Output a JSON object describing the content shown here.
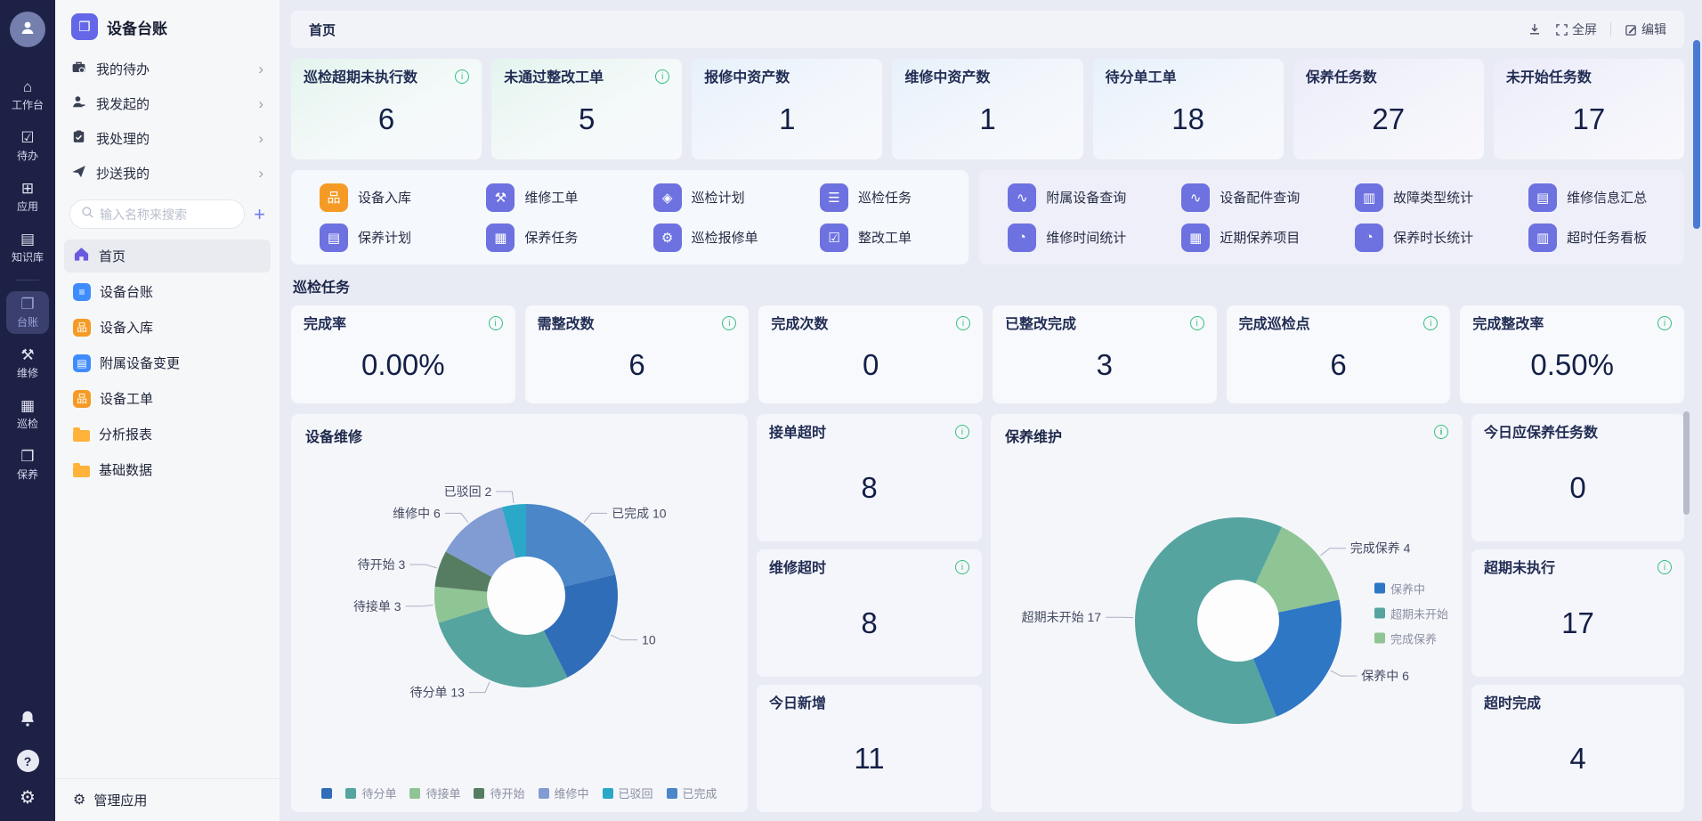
{
  "app_title": "设备台账",
  "app_icon_glyph": "❒",
  "colors": {
    "accent_purple": "#6d72e0",
    "accent_orange": "#f59b25",
    "accent_blue": "#3f8cff",
    "info_green": "#35c07e",
    "rail_bg": "#1d2145",
    "scrollbar_blue": "#4a7bd4"
  },
  "rail": {
    "selected": "台账",
    "items": [
      {
        "label": "工作台",
        "glyph": "⌂"
      },
      {
        "label": "待办",
        "glyph": "☑"
      },
      {
        "label": "应用",
        "glyph": "⊞"
      },
      {
        "label": "知识库",
        "glyph": "▤"
      },
      {
        "label": "台账",
        "glyph": "❐"
      },
      {
        "label": "维修",
        "glyph": "⚒"
      },
      {
        "label": "巡检",
        "glyph": "▦"
      },
      {
        "label": "保养",
        "glyph": "❒"
      }
    ]
  },
  "sidebar": {
    "groups": [
      {
        "label": "我的待办"
      },
      {
        "label": "我发起的"
      },
      {
        "label": "我处理的"
      },
      {
        "label": "抄送我的"
      }
    ],
    "search_placeholder": "输入名称来搜索",
    "menu": [
      {
        "label": "首页",
        "selected": true
      },
      {
        "label": "设备台账",
        "glyph": "≡",
        "color": "#3f8cff"
      },
      {
        "label": "设备入库",
        "glyph": "品",
        "color": "#f59b25"
      },
      {
        "label": "附属设备变更",
        "glyph": "▤",
        "color": "#3f8cff"
      },
      {
        "label": "设备工单",
        "glyph": "品",
        "color": "#f59b25"
      },
      {
        "label": "分析报表"
      },
      {
        "label": "基础数据"
      }
    ],
    "footer_label": "管理应用"
  },
  "header": {
    "breadcrumb": "首页",
    "fullscreen_label": "全屏",
    "edit_label": "编辑"
  },
  "stats_top": [
    {
      "label": "巡检超期未执行数",
      "value": "6",
      "info": true
    },
    {
      "label": "未通过整改工单",
      "value": "5",
      "info": true
    },
    {
      "label": "报修中资产数",
      "value": "1",
      "info": false
    },
    {
      "label": "维修中资产数",
      "value": "1",
      "info": false
    },
    {
      "label": "待分单工单",
      "value": "18",
      "info": false
    },
    {
      "label": "保养任务数",
      "value": "27",
      "info": false
    },
    {
      "label": "未开始任务数",
      "value": "17",
      "info": false
    }
  ],
  "shortcuts": {
    "left": [
      {
        "label": "设备入库",
        "glyph": "品",
        "color": "#f59b25"
      },
      {
        "label": "维修工单",
        "glyph": "⚒",
        "color": "#6d72e0"
      },
      {
        "label": "巡检计划",
        "glyph": "◈",
        "color": "#6d72e0"
      },
      {
        "label": "巡检任务",
        "glyph": "☰",
        "color": "#6d72e0"
      },
      {
        "label": "保养计划",
        "glyph": "▤",
        "color": "#6d72e0"
      },
      {
        "label": "保养任务",
        "glyph": "▦",
        "color": "#6d72e0"
      },
      {
        "label": "巡检报修单",
        "glyph": "⚙",
        "color": "#6d72e0"
      },
      {
        "label": "整改工单",
        "glyph": "☑",
        "color": "#6d72e0"
      }
    ],
    "right": [
      {
        "label": "附属设备查询",
        "glyph": "∿",
        "color": "#6d72e0"
      },
      {
        "label": "设备配件查询",
        "glyph": "∿",
        "color": "#6d72e0"
      },
      {
        "label": "故障类型统计",
        "glyph": "▥",
        "color": "#6d72e0"
      },
      {
        "label": "维修信息汇总",
        "glyph": "▤",
        "color": "#6d72e0"
      },
      {
        "label": "维修时间统计",
        "glyph": "◔",
        "color": "#6d72e0"
      },
      {
        "label": "近期保养项目",
        "glyph": "▦",
        "color": "#6d72e0"
      },
      {
        "label": "保养时长统计",
        "glyph": "◔",
        "color": "#6d72e0"
      },
      {
        "label": "超时任务看板",
        "glyph": "▥",
        "color": "#6d72e0"
      }
    ]
  },
  "inspection": {
    "title": "巡检任务",
    "stats": [
      {
        "label": "完成率",
        "value": "0.00%",
        "info": true
      },
      {
        "label": "需整改数",
        "value": "6",
        "info": true
      },
      {
        "label": "完成次数",
        "value": "0",
        "info": true
      },
      {
        "label": "已整改完成",
        "value": "3",
        "info": true
      },
      {
        "label": "完成巡检点",
        "value": "6",
        "info": true
      },
      {
        "label": "完成整改率",
        "value": "0.50%",
        "info": true
      }
    ]
  },
  "mid_cards": [
    {
      "label": "接单超时",
      "value": "8",
      "info": true
    },
    {
      "label": "维修超时",
      "value": "8",
      "info": true
    },
    {
      "label": "今日新增",
      "value": "11",
      "info": false
    }
  ],
  "right_cards": [
    {
      "label": "今日应保养任务数",
      "value": "0",
      "info": false
    },
    {
      "label": "超期未执行",
      "value": "17",
      "info": true
    },
    {
      "label": "超时完成",
      "value": "4",
      "info": false
    }
  ],
  "chart_data": [
    {
      "type": "pie",
      "donut": true,
      "title": "设备维修",
      "start_angle": 0,
      "legend_position": "bottom",
      "series": [
        {
          "name": "已完成",
          "value": 10,
          "color": "#4a86c8"
        },
        {
          "name": "",
          "value": 10,
          "color": "#2f6db8"
        },
        {
          "name": "待分单",
          "value": 13,
          "color": "#55a49f"
        },
        {
          "name": "待接单",
          "value": 3,
          "color": "#8fc494"
        },
        {
          "name": "待开始",
          "value": 3,
          "color": "#567d62"
        },
        {
          "name": "维修中",
          "value": 6,
          "color": "#809cd2"
        },
        {
          "name": "已驳回",
          "value": 2,
          "color": "#2ba7c8"
        }
      ],
      "legend": [
        "",
        "待分单",
        "待接单",
        "待开始",
        "维修中",
        "已驳回",
        "已完成"
      ]
    },
    {
      "type": "pie",
      "donut": true,
      "title": "保养维护",
      "start_angle": 25,
      "legend_position": "right",
      "series": [
        {
          "name": "完成保养",
          "value": 4,
          "color": "#8fc494"
        },
        {
          "name": "保养中",
          "value": 6,
          "color": "#2e77c5"
        },
        {
          "name": "超期未开始",
          "value": 17,
          "color": "#55a49f"
        }
      ],
      "legend": [
        "保养中",
        "超期未开始",
        "完成保养"
      ]
    }
  ]
}
